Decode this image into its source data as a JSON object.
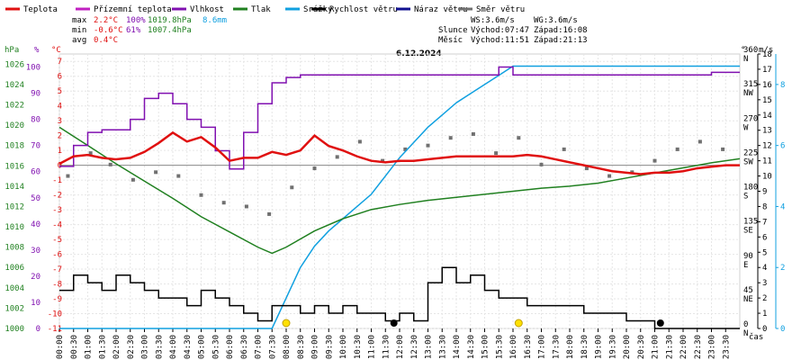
{
  "legend": [
    {
      "label": "Teplota",
      "color": "#e01010"
    },
    {
      "label": "Přízemní teplota",
      "color": "#c020c0"
    },
    {
      "label": "Vlhkost",
      "color": "#8010b0"
    },
    {
      "label": "Tlak",
      "color": "#208020"
    },
    {
      "label": "Srážky",
      "color": "#10a0e0"
    },
    {
      "label": "Rychlost větru",
      "color": "#000000"
    },
    {
      "label": "Náraz větru",
      "color": "#101090"
    },
    {
      "label": "Směr větru",
      "color": "#707070"
    }
  ],
  "stats": {
    "max_label": "max",
    "max_temp": "2.2°C",
    "max_hum": "100%",
    "max_press": "1019.8hPa",
    "rain": "8.6mm",
    "min_label": "min",
    "min_temp": "-0.6°C",
    "min_hum": "61%",
    "min_press": "1007.4hPa",
    "avg_label": "avg",
    "avg_temp": "0.4°C"
  },
  "wind_info": {
    "ws": "WS:3.6m/s",
    "wg": "WG:3.6m/s",
    "sun_label": "Slunce",
    "sunrise": "Východ:07:47",
    "sunset": "Západ:16:08",
    "moon_label": "Měsíc",
    "moonrise": "Východ:11:51",
    "moonset": "Západ:21:13"
  },
  "chart_data": {
    "type": "line",
    "title": "6.12.2024",
    "xlabel": "čas",
    "x_ticks": [
      "00:00",
      "00:30",
      "01:00",
      "01:30",
      "02:00",
      "02:30",
      "03:00",
      "03:30",
      "04:00",
      "04:30",
      "05:00",
      "05:30",
      "06:00",
      "06:30",
      "07:00",
      "07:30",
      "08:00",
      "08:30",
      "09:00",
      "09:30",
      "10:00",
      "10:30",
      "11:00",
      "11:30",
      "12:00",
      "12:30",
      "13:00",
      "13:30",
      "14:00",
      "14:30",
      "15:00",
      "15:30",
      "16:00",
      "16:30",
      "17:00",
      "17:30",
      "18:00",
      "18:30",
      "19:00",
      "19:30",
      "20:00",
      "20:30",
      "21:00",
      "21:30",
      "22:00",
      "22:30",
      "23:00",
      "23:30"
    ],
    "axes": {
      "pressure": {
        "unit": "hPa",
        "ticks": [
          "1000",
          "1002",
          "1004",
          "1006",
          "1008",
          "1010",
          "1012",
          "1014",
          "1016",
          "1018",
          "1020",
          "1022",
          "1024",
          "1026"
        ],
        "range": [
          1000,
          1027
        ]
      },
      "humidity": {
        "unit": "%",
        "ticks": [
          "0",
          "10",
          "20",
          "30",
          "40",
          "50",
          "60",
          "70",
          "80",
          "90",
          "100"
        ],
        "range": [
          0,
          105
        ]
      },
      "temperature": {
        "unit": "°C",
        "ticks": [
          "-11",
          "-10",
          "-9",
          "-8",
          "-7",
          "-6",
          "-5",
          "-4",
          "-3",
          "-2",
          "-1",
          "0",
          "1",
          "2",
          "3",
          "4",
          "5",
          "6",
          "7"
        ],
        "range": [
          -11,
          7.5
        ]
      },
      "direction": {
        "unit": "°",
        "ticks": [
          {
            "deg": "0",
            "dir": "N"
          },
          {
            "deg": "45",
            "dir": "NE"
          },
          {
            "deg": "90",
            "dir": "E"
          },
          {
            "deg": "135",
            "dir": "SE"
          },
          {
            "deg": "180",
            "dir": "S"
          },
          {
            "deg": "225",
            "dir": "SW"
          },
          {
            "deg": "270",
            "dir": "W"
          },
          {
            "deg": "315",
            "dir": "NW"
          },
          {
            "deg": "360",
            "dir": "N"
          }
        ],
        "range": [
          0,
          360
        ]
      },
      "wind": {
        "unit": "m/s",
        "ticks": [
          "0",
          "1",
          "2",
          "3",
          "4",
          "5",
          "6",
          "7",
          "8",
          "9",
          "10",
          "11",
          "12",
          "13",
          "14",
          "15",
          "16",
          "17",
          "18"
        ],
        "range": [
          0,
          18
        ]
      },
      "rain": {
        "ticks": [
          "0",
          "2",
          "4",
          "6",
          "8"
        ],
        "range": [
          0,
          9
        ]
      }
    },
    "series": [
      {
        "name": "Teplota",
        "unit": "°C",
        "x": [
          0,
          0.5,
          1,
          1.5,
          2,
          2.5,
          3,
          3.5,
          4,
          4.5,
          5,
          5.5,
          6,
          6.5,
          7,
          7.5,
          8,
          8.5,
          9,
          9.5,
          10,
          10.5,
          11,
          11.5,
          12,
          12.5,
          13,
          13.5,
          14,
          14.5,
          15,
          15.5,
          16,
          16.5,
          17,
          17.5,
          18,
          18.5,
          19,
          19.5,
          20,
          20.5,
          21,
          21.5,
          22,
          22.5,
          23,
          23.5,
          24
        ],
        "values": [
          0.1,
          0.6,
          0.7,
          0.5,
          0.4,
          0.5,
          0.9,
          1.5,
          2.2,
          1.6,
          1.9,
          1.2,
          0.3,
          0.5,
          0.5,
          0.9,
          0.7,
          1.0,
          2.0,
          1.3,
          1.0,
          0.6,
          0.3,
          0.2,
          0.3,
          0.3,
          0.4,
          0.5,
          0.6,
          0.6,
          0.6,
          0.6,
          0.6,
          0.7,
          0.6,
          0.4,
          0.2,
          0.0,
          -0.2,
          -0.4,
          -0.5,
          -0.6,
          -0.5,
          -0.5,
          -0.4,
          -0.2,
          -0.1,
          0.0,
          0.0
        ]
      },
      {
        "name": "Vlhkost",
        "unit": "%",
        "x": [
          0,
          0.5,
          1,
          1.5,
          2,
          2.5,
          3,
          3.5,
          4,
          4.5,
          5,
          5.5,
          6,
          6.5,
          7,
          7.5,
          8,
          8.5,
          9,
          9.5,
          10,
          10.5,
          11,
          11.5,
          12,
          12.5,
          13,
          13.5,
          14,
          14.5,
          15,
          15.5,
          16,
          16.5,
          17,
          17.5,
          18,
          18.5,
          19,
          19.5,
          20,
          20.5,
          21,
          21.5,
          22,
          22.5,
          23,
          23.5,
          24
        ],
        "values": [
          62,
          70,
          75,
          76,
          76,
          80,
          88,
          90,
          86,
          80,
          77,
          68,
          61,
          75,
          86,
          94,
          96,
          97,
          97,
          97,
          97,
          97,
          97,
          97,
          97,
          97,
          97,
          97,
          97,
          97,
          97,
          100,
          97,
          97,
          97,
          97,
          97,
          97,
          97,
          97,
          97,
          97,
          97,
          97,
          97,
          97,
          98,
          98,
          98
        ]
      },
      {
        "name": "Tlak",
        "unit": "hPa",
        "x": [
          0,
          1,
          2,
          3,
          4,
          5,
          6,
          7,
          7.5,
          8,
          9,
          10,
          11,
          12,
          13,
          14,
          15,
          16,
          17,
          18,
          19,
          20,
          21,
          22,
          23,
          24
        ],
        "values": [
          1019.8,
          1018.0,
          1016.2,
          1014.5,
          1012.8,
          1011.0,
          1009.5,
          1008.0,
          1007.4,
          1008.0,
          1009.6,
          1010.8,
          1011.7,
          1012.2,
          1012.6,
          1012.9,
          1013.2,
          1013.5,
          1013.8,
          1014.0,
          1014.3,
          1014.8,
          1015.3,
          1015.8,
          1016.3,
          1016.7
        ]
      },
      {
        "name": "Srážky",
        "unit": "mm",
        "x": [
          0,
          7.5,
          8,
          8.5,
          9,
          9.5,
          10,
          10.5,
          11,
          11.5,
          12,
          12.5,
          13,
          13.5,
          14,
          14.5,
          15,
          15.5,
          16,
          24
        ],
        "values": [
          0,
          0,
          1.0,
          2.0,
          2.7,
          3.2,
          3.6,
          4.0,
          4.4,
          5.0,
          5.6,
          6.1,
          6.6,
          7.0,
          7.4,
          7.7,
          8.0,
          8.3,
          8.6,
          8.6
        ]
      },
      {
        "name": "Rychlost větru",
        "unit": "m/s",
        "x": [
          0,
          0.5,
          1,
          1.5,
          2,
          2.5,
          3,
          3.5,
          4,
          4.5,
          5,
          5.5,
          6,
          6.5,
          7,
          7.5,
          8,
          8.5,
          9,
          9.5,
          10,
          10.5,
          11,
          11.5,
          12,
          12.5,
          13,
          13.5,
          14,
          14.5,
          15,
          15.5,
          16,
          16.5,
          17,
          17.5,
          18,
          18.5,
          19,
          19.5,
          20,
          20.5,
          21,
          21.5,
          22,
          22.5,
          23,
          23.5,
          24
        ],
        "values": [
          2.5,
          3.5,
          3.0,
          2.5,
          3.5,
          3.0,
          2.5,
          2.0,
          2.0,
          1.5,
          2.5,
          2.0,
          1.5,
          1.0,
          0.5,
          1.5,
          1.5,
          1.0,
          1.5,
          1.0,
          1.5,
          1.0,
          1.0,
          0.5,
          1.0,
          0.5,
          3.0,
          4.0,
          3.0,
          3.5,
          2.5,
          2.0,
          2.0,
          1.5,
          1.5,
          1.5,
          1.5,
          1.0,
          1.0,
          1.0,
          0.5,
          0.5,
          0.0,
          0.0,
          0.0,
          0.0,
          0.0,
          0.0,
          0.0
        ]
      },
      {
        "name": "Směr větru",
        "unit": "°",
        "x": [
          0.3,
          1.1,
          1.8,
          2.6,
          3.4,
          4.2,
          5.0,
          5.8,
          6.6,
          7.4,
          8.2,
          9.0,
          9.8,
          10.6,
          11.4,
          12.2,
          13.0,
          13.8,
          14.6,
          15.4,
          16.2,
          17.0,
          17.8,
          18.6,
          19.4,
          20.2,
          21.0,
          21.8,
          22.6,
          23.4
        ],
        "values": [
          200,
          230,
          215,
          195,
          205,
          200,
          175,
          165,
          160,
          150,
          185,
          210,
          225,
          245,
          220,
          235,
          240,
          250,
          255,
          230,
          250,
          215,
          235,
          210,
          200,
          205,
          220,
          235,
          245,
          235
        ]
      }
    ],
    "markers": [
      {
        "type": "sun",
        "x": 8.0
      },
      {
        "type": "moon",
        "x": 11.8
      },
      {
        "type": "sun",
        "x": 16.2
      },
      {
        "type": "moon",
        "x": 21.2
      }
    ]
  }
}
